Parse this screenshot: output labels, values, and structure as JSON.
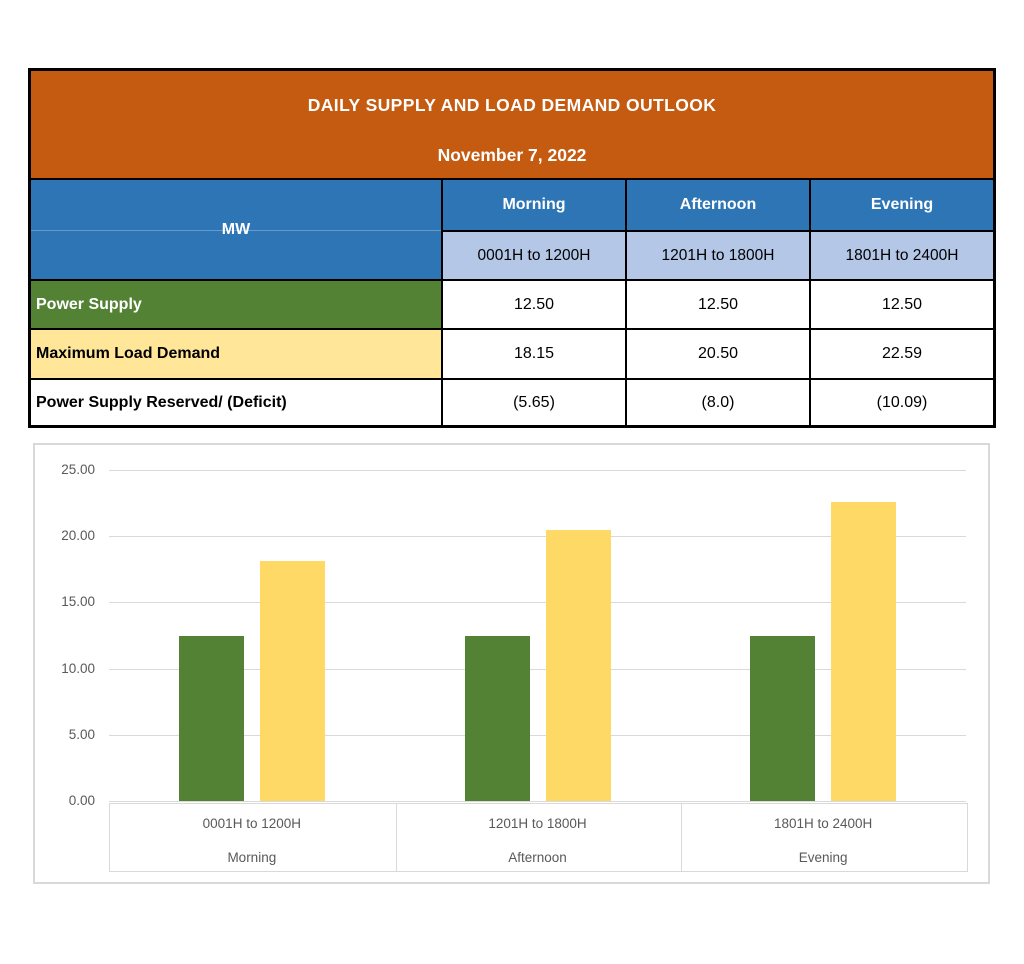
{
  "report": {
    "title": "DAILY SUPPLY AND LOAD DEMAND OUTLOOK",
    "date": "November 7, 2022"
  },
  "table": {
    "unit_label": "MW",
    "columns": [
      {
        "period": "Morning",
        "hours": "0001H to 1200H"
      },
      {
        "period": "Afternoon",
        "hours": "1201H to 1800H"
      },
      {
        "period": "Evening",
        "hours": "1801H to 2400H"
      }
    ],
    "rows": [
      {
        "label": "Power Supply",
        "values": [
          "12.50",
          "12.50",
          "12.50"
        ]
      },
      {
        "label": "Maximum Load Demand",
        "values": [
          "18.15",
          "20.50",
          "22.59"
        ]
      },
      {
        "label": "Power Supply Reserved/ (Deficit)",
        "values": [
          "(5.65)",
          "(8.0)",
          "(10.09)"
        ]
      }
    ]
  },
  "chart_data": {
    "type": "bar",
    "title": "",
    "xlabel": "",
    "ylabel": "",
    "grid": true,
    "legend_position": "none",
    "ylim": [
      0,
      25
    ],
    "yticks": [
      {
        "label": "25.00",
        "value": 25
      },
      {
        "label": "20.00",
        "value": 20
      },
      {
        "label": "15.00",
        "value": 15
      },
      {
        "label": "10.00",
        "value": 10
      },
      {
        "label": "5.00",
        "value": 5
      },
      {
        "label": "0.00",
        "value": 0
      }
    ],
    "categories": [
      {
        "hours": "0001H to 1200H",
        "period": "Morning"
      },
      {
        "hours": "1201H to 1800H",
        "period": "Afternoon"
      },
      {
        "hours": "1801H to 2400H",
        "period": "Evening"
      }
    ],
    "series": [
      {
        "name": "Power Supply",
        "color": "#548235",
        "values": [
          12.5,
          12.5,
          12.5
        ]
      },
      {
        "name": "Maximum Load Demand",
        "color": "#FFD966",
        "values": [
          18.15,
          20.5,
          22.59
        ]
      }
    ]
  },
  "colors": {
    "header_orange": "#C55A11",
    "header_blue": "#2E75B6",
    "subheader_light_blue": "#B4C7E7",
    "row_green": "#548235",
    "row_yellow": "#FFE699",
    "bar_green": "#548235",
    "bar_yellow": "#FFD966",
    "gridline": "#D9D9D9",
    "axis_text": "#595959",
    "table_border": "#000000"
  }
}
